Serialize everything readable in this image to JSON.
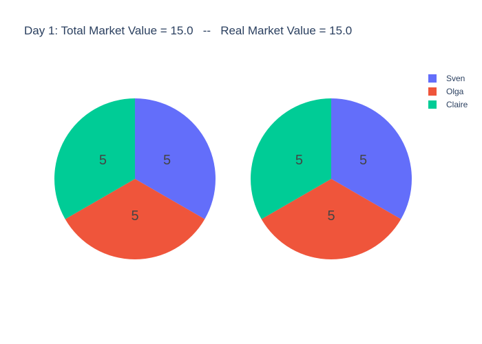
{
  "chart_data": {
    "type": "pie",
    "title": "Day 1: Total Market Value = 15.0   --   Real Market Value = 15.0",
    "legend": [
      {
        "name": "Sven",
        "color": "#636efa"
      },
      {
        "name": "Olga",
        "color": "#ef553b"
      },
      {
        "name": "Claire",
        "color": "#00cc96"
      }
    ],
    "pies": [
      {
        "labels": [
          "Sven",
          "Olga",
          "Claire"
        ],
        "values": [
          5,
          5,
          5
        ],
        "text": [
          "5",
          "5",
          "5"
        ]
      },
      {
        "labels": [
          "Sven",
          "Olga",
          "Claire"
        ],
        "values": [
          5,
          5,
          5
        ],
        "text": [
          "5",
          "5",
          "5"
        ]
      }
    ],
    "legend_position": "top-right"
  }
}
